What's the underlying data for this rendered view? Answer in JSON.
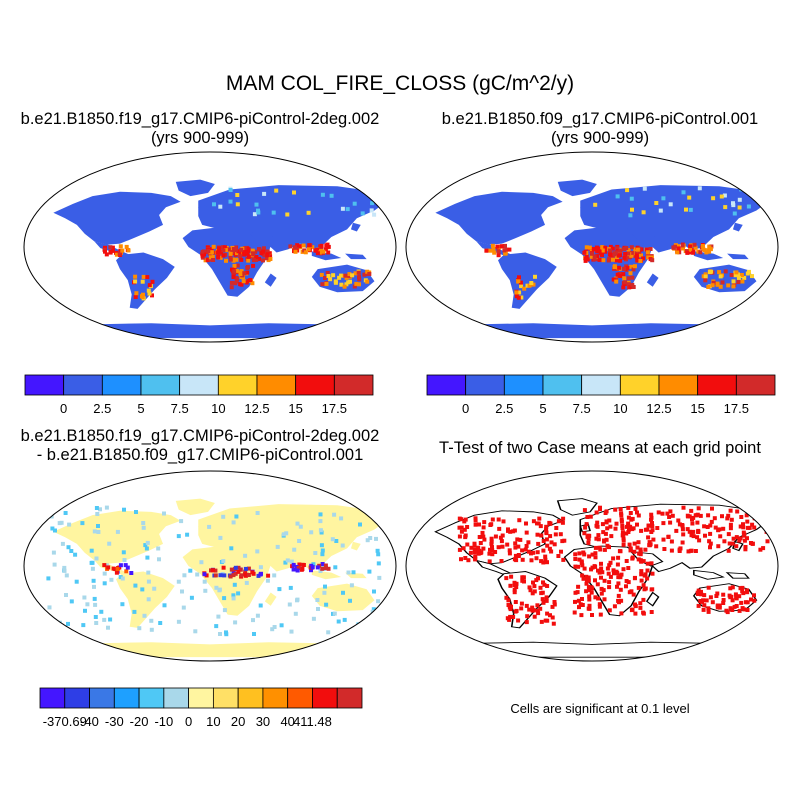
{
  "title": "MAM COL_FIRE_CLOSS (gC/m^2/y)",
  "panels": {
    "p1": {
      "line1": "b.e21.B1850.f19_g17.CMIP6-piControl-2deg.002",
      "line2": "(yrs 900-999)"
    },
    "p2": {
      "line1": "b.e21.B1850.f09_g17.CMIP6-piControl.001",
      "line2": "(yrs 900-999)"
    },
    "p3": {
      "line1": "b.e21.B1850.f19_g17.CMIP6-piControl-2deg.002",
      "line2": "- b.e21.B1850.f09_g17.CMIP6-piControl.001"
    },
    "p4": {
      "line1": "T-Test of two Case means at each grid point"
    }
  },
  "colorbar_top": {
    "colors": [
      "#4416ff",
      "#3a5ee6",
      "#1e90ff",
      "#4fc0ef",
      "#c8e6f8",
      "#ffd22a",
      "#ff8c00",
      "#f20d0d",
      "#d22a2a"
    ],
    "ticks": [
      "0",
      "2.5",
      "5",
      "7.5",
      "10",
      "12.5",
      "15",
      "17.5"
    ]
  },
  "colorbar_diff": {
    "colors": [
      "#4416ff",
      "#2e3ee6",
      "#3a78e6",
      "#1ea0ff",
      "#4fc8f5",
      "#a9d8ea",
      "#fff5a0",
      "#ffe066",
      "#ffc020",
      "#ff9000",
      "#ff5a00",
      "#f20d0d",
      "#d22a2a"
    ],
    "ticks": [
      "-370.69",
      "-40",
      "-30",
      "-20",
      "-10",
      "0",
      "10",
      "20",
      "30",
      "40",
      "411.48"
    ]
  },
  "map_colors": {
    "ocean": "#ffffff",
    "land_abs": "#3a5ee6",
    "land_diff": "#fff5a0",
    "signif": "#f20d0d"
  },
  "note": "Cells are significant at 0.1 level"
}
